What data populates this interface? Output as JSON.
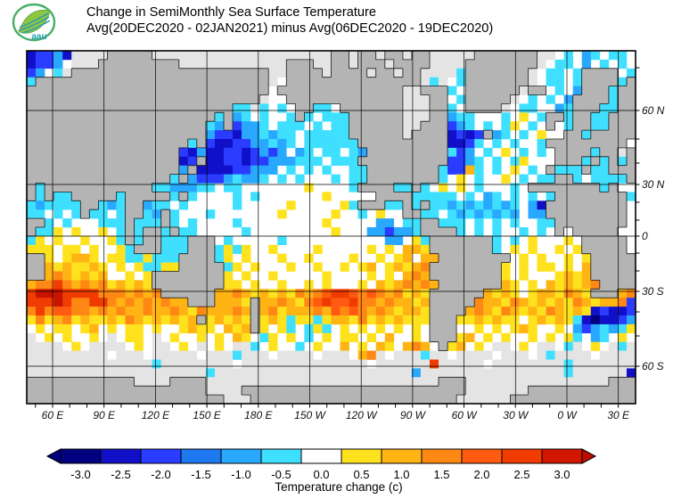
{
  "header": {
    "title_line1": "Change in SemiMonthly Sea Surface Temperature",
    "title_line2": "Avg(20DEC2020 - 02JAN2021) minus Avg(06DEC2020 - 19DEC2020)",
    "logo_text": "aau"
  },
  "map": {
    "lat_labels": [
      "60 N",
      "30 N",
      "0",
      "30 S",
      "60 S"
    ],
    "lon_labels": [
      "60 E",
      "90 E",
      "120 E",
      "150 E",
      "180 E",
      "150 W",
      "120 W",
      "90 W",
      "60 W",
      "30 W",
      "0 W",
      "30 E"
    ],
    "land_color": "#b4b4b4",
    "coast_color": "#1a1a1a",
    "nodata_color": "#e4e4e4",
    "palette": {
      ".": "#ffffff",
      "1": "#3fe0ff",
      "2": "#28a8ff",
      "3": "#2a3cff",
      "4": "#1010c8",
      "5": "#000080",
      "y": "#ffe21e",
      "o": "#ffb414",
      "O": "#ff8714",
      "r": "#ff5a0f",
      "R": "#f03c00",
      "D": "#c81400",
      "#": "#b4b4b4",
      "g": "#e4e4e4"
    },
    "raster": [
      "43324gggg#####gggggggggggggggggggg##g##g##g##ggggg#######gg.1.21.11.",
      "4332.ggg#########gggggggggggg###gg##g###g####gggg########g.11.2.1.1.",
      "32.1g######################gg####g####g##g##gggg1#######g.11.1####.1",
      "1##########################g.###############g1g.1#######g.11.1####1#",
      "###########################.##############gg###1.######g##.1.2###1##",
      "##########################g..#############ggg##.1#####g.1.1.2####1##",
      "#######################11g1.1.##11.#######ggg##1.####g.11..21###11##",
      "#####################1#21.1..1#1.111######ggg##211...1.y.1##1##11###",
      "####################12#3221.111.1.11######gg###321.1.1y.1.#.1##11###",
      "####################2334221211.11111######g####4343#21.1.y..##1#####",
      "##################1#3443322121.111111##########4431.1.1..1#########",
      "#################342443343232 21.11.12#########132.1.y.1.1.####1##g#",
      "#################43#4433433222111.111##########3321 1.1y...###1#1#1##",
      "#################2#444433222 1.1.1..11########133o1.1.y.1.#111#11###",
      "################1#233321221.1.1...1.11########1.y.1..y.1.11##1.1111#",
      "#1############1122211 11.......y....1####11#1.y.y.1...1.########1#",
      "#1#11#####1#####1#1....1.1.......y.....####11111.1.21.1.1.1########1#",
      "121111##121##211.1.....1.....y.....y1###11#1#1121212121 24#########",
      "11.1.1#11 1##12#1...1.......y.....y..1.y..##11.12121212.22#########",
      "##1.1...111#111#1.1....1.........y.....22.11##111.1.1.1..11########",
      "#11y.y..y.1#1##1#11.....1.........y...223221####1.1.1..1.1.#.#####",
      "1y.y..y..y1#1##111###.1.....1........ ..22.y1#######1.1.y...y.#####",
      "yyy.yy.y..y1###111###1y1y..y....y.....y.y.ooy#######1.y.y..y.y#####",
      "##y.yooy.yy11y111####1y.y...y..y....y..y.yo oo########.y.y..y.y#####",
      "##oyoyyoy.y.y11yy#####1y.y...y..y..y.yo.yoyoO########y.y.yy.y.o#####",
      "##oOoyoyo..y.y########y.y..y.....y....y.y.oOo########y.y...yoyo#####",
      "oOOROoOoOyoyoy########yy.y..y..y.y...y.oyoOoOo#######oy.y.oyoyoO#####",
      "RDDDRRRROOOoOoO######ooOoyoyoyOoOrRRrOrOoOyoy######oyoy.yooyOoy###oO",
      "RRRDROORROoOoOoOoo###oooy#ooOoyOrRrrROOoOooyo#####OooyOoyoyoyOoyooO3",
      "OROrrOOoOoOooOooOoyOoooOo#oOyoooOorOrOoOoyooy####oOoyOoyoyOoyoy43443",
      "yOyoOyoyyoyOoyoyoyo#yoyoy#yoy1yy1yooyOyoyoyyy###yyoyoyy.yoyoy1454432",
      ".y.yy.yo.y.yy.y..yoyy.oyo#y.y1.1y1.y.y.y.y.y.###..y.y.yoy..y.232121y",
      "g.y.y..y.g.yy.g.y..y.y.oy.1y.y.1.y.yy.y.o..y.###yo.y.y..y.y.y1.21.y.",
      "gggg.y.gggg.y.gg.y.g.y.gg1.y..1.y..o.y.oy.oOo.#yo.y.gg.y.gg.1g.y.g1g",
      "ggggggggg.ggg.ggggg.ggg1ggg.gggg.ggg.oOg.ggg1gg.gggg.ggg.g1gggg.gggg",
      "gggggggggggggg1gggggggg.gggggggggggggg.ggggggRggggg.gggggggg1ggggggg",
      "gggggggggggggggggggg1gggggggggggggggggggggg2gggggggggggggggg1gggggg4",
      "############gggg####gggggggggggggggggggggggggg###gggggggggggggggg###",
      "####################gggg#########################ggggggg############",
      "######################ggg#######################gggggg##############"
    ]
  },
  "colorbar": {
    "tick_labels": [
      "-3.0",
      "-2.5",
      "-2.0",
      "-1.5",
      "-1.0",
      "-0.5",
      "0.0",
      "0.5",
      "1.0",
      "1.5",
      "2.0",
      "2.5",
      "3.0"
    ],
    "segment_colors": [
      "#000080",
      "#1010c8",
      "#2a3cff",
      "#1e78f0",
      "#28a8ff",
      "#3fe0ff",
      "#ffffff",
      "#ffe21e",
      "#ffb414",
      "#ff8714",
      "#ff5a0f",
      "#f03c00",
      "#d21600"
    ],
    "left_arrow_color": "#000080",
    "right_arrow_color": "#bb0e00",
    "caption": "Temperature change  (c)"
  }
}
